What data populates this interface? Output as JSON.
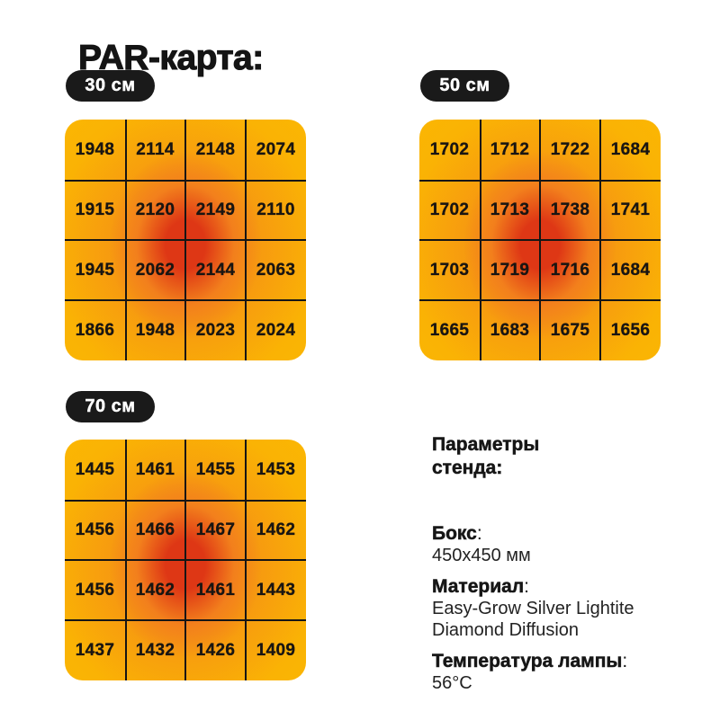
{
  "title": "PAR-карта:",
  "theme": {
    "background": "#FFFFFF",
    "badge_bg": "#1A1A1A",
    "badge_text": "#FFFFFF",
    "grid_line": "#151515",
    "text": "#1A1A1A"
  },
  "chart_data": [
    {
      "type": "heatmap",
      "label": "30 см",
      "rows": 4,
      "cols": 4,
      "values": [
        [
          1948,
          2114,
          2148,
          2074
        ],
        [
          1915,
          2120,
          2149,
          2110
        ],
        [
          1945,
          2062,
          2144,
          2063
        ],
        [
          1866,
          1948,
          2023,
          2024
        ]
      ],
      "palette": {
        "low": "#FBB702",
        "mid": "#F27C1E",
        "high": "#DE3715"
      },
      "legend": "none",
      "grid": true
    },
    {
      "type": "heatmap",
      "label": "50 см",
      "rows": 4,
      "cols": 4,
      "values": [
        [
          1702,
          1712,
          1722,
          1684
        ],
        [
          1702,
          1713,
          1738,
          1741
        ],
        [
          1703,
          1719,
          1716,
          1684
        ],
        [
          1665,
          1683,
          1675,
          1656
        ]
      ],
      "palette": {
        "low": "#FBB702",
        "mid": "#F27C1E",
        "high": "#DE3715"
      },
      "legend": "none",
      "grid": true
    },
    {
      "type": "heatmap",
      "label": "70 см",
      "rows": 4,
      "cols": 4,
      "values": [
        [
          1445,
          1461,
          1455,
          1453
        ],
        [
          1456,
          1466,
          1467,
          1462
        ],
        [
          1456,
          1462,
          1461,
          1443
        ],
        [
          1437,
          1432,
          1426,
          1409
        ]
      ],
      "palette": {
        "low": "#FBB702",
        "mid": "#F27C1E",
        "high": "#DE3715"
      },
      "legend": "none",
      "grid": true
    }
  ],
  "params": {
    "heading": "Параметры\nстенда:",
    "items": [
      {
        "term": "Бокс",
        "value": "450x450 мм"
      },
      {
        "term": "Материал",
        "value": "Easy-Grow Silver Lightite Diamond Diffusion"
      },
      {
        "term": "Температура лампы",
        "value": "56°C"
      }
    ]
  }
}
